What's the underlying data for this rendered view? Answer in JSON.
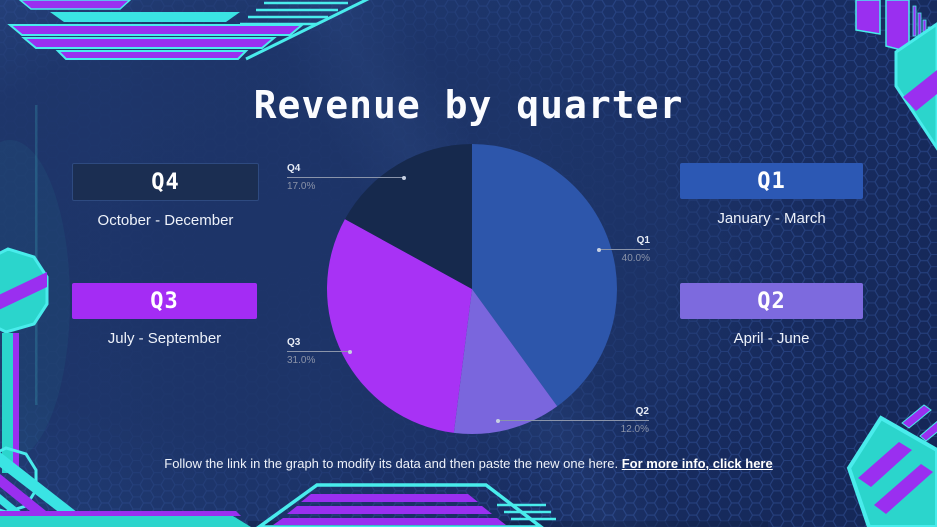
{
  "slide": {
    "title": "Revenue by quarter",
    "footer_text": "Follow the link in the graph to modify its data and then paste the new one here.",
    "footer_link": "For more info, click here"
  },
  "quarter_cards": [
    {
      "label": "Q4",
      "range": "October - December",
      "box_color": "#1b2e52"
    },
    {
      "label": "Q1",
      "range": "January - March",
      "box_color": "#2c58b4"
    },
    {
      "label": "Q3",
      "range": "July - September",
      "box_color": "#a42cf4"
    },
    {
      "label": "Q2",
      "range": "April - June",
      "box_color": "#7d6ade"
    }
  ],
  "chart_data": {
    "type": "pie",
    "title": "Revenue by quarter",
    "categories": [
      "Q1",
      "Q2",
      "Q3",
      "Q4"
    ],
    "values": [
      40.0,
      12.0,
      31.0,
      17.0
    ],
    "percent_labels": [
      "40.0%",
      "12.0%",
      "31.0%",
      "17.0%"
    ],
    "colors": [
      "#2d56ab",
      "#7a66dd",
      "#a832f5",
      "#16294d"
    ],
    "start_angle_deg": 0,
    "direction": "clockwise",
    "legend": "none"
  },
  "theme": {
    "background": "#1d3468",
    "accent_cyan": "#49ecec",
    "accent_teal": "#2bd5cc",
    "accent_purple": "#9a2ff0",
    "title_color": "#fbfcff",
    "callout_line": "#8a94aa",
    "callout_pct": "#8b93a8"
  }
}
